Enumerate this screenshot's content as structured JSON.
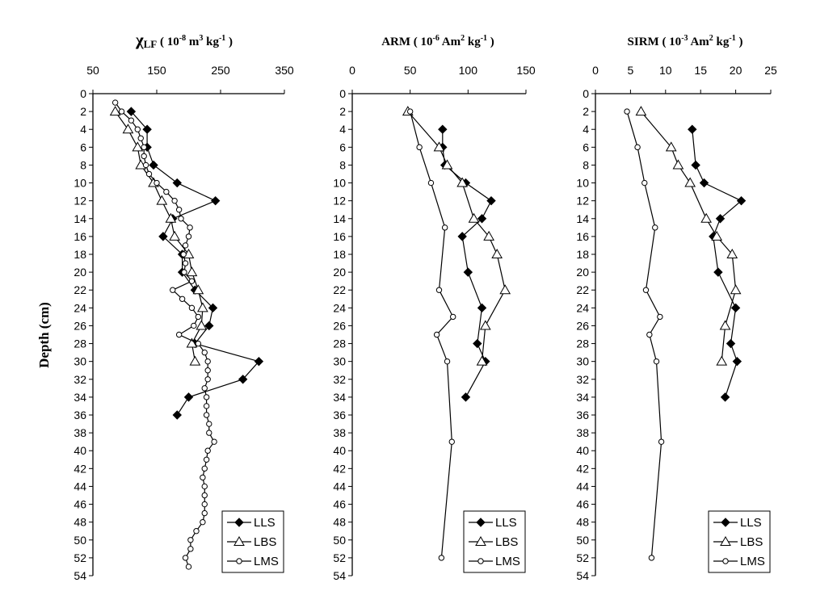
{
  "figure": {
    "ylabel": "Depth (cm)"
  },
  "chart_data": [
    {
      "type": "line",
      "title": {
        "symbol": "χ",
        "sub": "LF",
        "unit_open": " ( 10",
        "exp1": "-8",
        "m": " m",
        "exp2": "3",
        "kg": " kg",
        "exp3": "-1",
        "close": " )"
      },
      "xlim": [
        50,
        350
      ],
      "xticks": [
        50,
        150,
        250,
        350
      ],
      "xtick_labels": [
        "50",
        "150",
        "250",
        "350"
      ],
      "ylim": [
        0,
        54
      ],
      "yticks": [
        0,
        2,
        4,
        6,
        8,
        10,
        12,
        14,
        16,
        18,
        20,
        22,
        24,
        26,
        28,
        30,
        32,
        34,
        36,
        38,
        40,
        42,
        44,
        46,
        48,
        50,
        52,
        54
      ],
      "ytick_labels": [
        "0",
        "2",
        "4",
        "6",
        "8",
        "10",
        "12",
        "14",
        "16",
        "18",
        "20",
        "22",
        "24",
        "26",
        "28",
        "30",
        "32",
        "34",
        "36",
        "38",
        "40",
        "42",
        "44",
        "46",
        "48",
        "50",
        "52",
        "54"
      ],
      "y_inverted": true,
      "legend_position": "bottom-right",
      "series": [
        {
          "name": "LLS",
          "marker": "diamond",
          "points": [
            [
              110,
              2
            ],
            [
              135,
              4
            ],
            [
              135,
              6
            ],
            [
              145,
              8
            ],
            [
              182,
              10
            ],
            [
              242,
              12
            ],
            [
              175,
              14
            ],
            [
              160,
              16
            ],
            [
              190,
              18
            ],
            [
              190,
              20
            ],
            [
              210,
              22
            ],
            [
              238,
              24
            ],
            [
              232,
              26
            ],
            [
              210,
              28
            ],
            [
              310,
              30
            ],
            [
              285,
              32
            ],
            [
              200,
              34
            ],
            [
              182,
              36
            ]
          ]
        },
        {
          "name": "LBS",
          "marker": "triangle",
          "points": [
            [
              85,
              2
            ],
            [
              105,
              4
            ],
            [
              120,
              6
            ],
            [
              125,
              8
            ],
            [
              145,
              10
            ],
            [
              158,
              12
            ],
            [
              172,
              14
            ],
            [
              178,
              16
            ],
            [
              200,
              18
            ],
            [
              205,
              20
            ],
            [
              215,
              22
            ],
            [
              222,
              24
            ],
            [
              220,
              26
            ],
            [
              205,
              28
            ],
            [
              210,
              30
            ]
          ]
        },
        {
          "name": "LMS",
          "marker": "circle",
          "points": [
            [
              85,
              1
            ],
            [
              95,
              2
            ],
            [
              110,
              3
            ],
            [
              120,
              4
            ],
            [
              125,
              5
            ],
            [
              130,
              6
            ],
            [
              130,
              7
            ],
            [
              133,
              8
            ],
            [
              138,
              9
            ],
            [
              150,
              10
            ],
            [
              165,
              11
            ],
            [
              178,
              12
            ],
            [
              185,
              13
            ],
            [
              188,
              14
            ],
            [
              202,
              15
            ],
            [
              200,
              16
            ],
            [
              195,
              17
            ],
            [
              192,
              18
            ],
            [
              195,
              19
            ],
            [
              193,
              20
            ],
            [
              205,
              21
            ],
            [
              175,
              22
            ],
            [
              190,
              23
            ],
            [
              205,
              24
            ],
            [
              215,
              25
            ],
            [
              208,
              26
            ],
            [
              185,
              27
            ],
            [
              215,
              28
            ],
            [
              225,
              29
            ],
            [
              230,
              30
            ],
            [
              230,
              31
            ],
            [
              230,
              32
            ],
            [
              225,
              33
            ],
            [
              228,
              34
            ],
            [
              228,
              35
            ],
            [
              228,
              36
            ],
            [
              232,
              37
            ],
            [
              232,
              38
            ],
            [
              240,
              39
            ],
            [
              230,
              40
            ],
            [
              228,
              41
            ],
            [
              225,
              42
            ],
            [
              222,
              43
            ],
            [
              225,
              44
            ],
            [
              225,
              45
            ],
            [
              225,
              46
            ],
            [
              225,
              47
            ],
            [
              222,
              48
            ],
            [
              212,
              49
            ],
            [
              203,
              50
            ],
            [
              203,
              51
            ],
            [
              195,
              52
            ],
            [
              200,
              53
            ]
          ]
        }
      ]
    },
    {
      "type": "line",
      "title": {
        "main": "ARM",
        "unit_open": " ( 10",
        "exp1": "-6",
        "unit_mid": " Am",
        "exp2": "2",
        "kg": " kg",
        "exp3": "-1",
        "close": " )"
      },
      "xlim": [
        0,
        150
      ],
      "xticks": [
        0,
        50,
        100,
        150
      ],
      "xtick_labels": [
        "0",
        "50",
        "100",
        "150"
      ],
      "ylim": [
        0,
        54
      ],
      "yticks": [
        0,
        2,
        4,
        6,
        8,
        10,
        12,
        14,
        16,
        18,
        20,
        22,
        24,
        26,
        28,
        30,
        32,
        34,
        36,
        38,
        40,
        42,
        44,
        46,
        48,
        50,
        52,
        54
      ],
      "ytick_labels": [
        "0",
        "2",
        "4",
        "6",
        "8",
        "10",
        "12",
        "14",
        "16",
        "18",
        "20",
        "22",
        "24",
        "26",
        "28",
        "30",
        "32",
        "34",
        "36",
        "38",
        "40",
        "42",
        "44",
        "46",
        "48",
        "50",
        "52",
        "54"
      ],
      "y_inverted": true,
      "legend_position": "bottom-right",
      "series": [
        {
          "name": "LLS",
          "marker": "diamond",
          "points": [
            [
              78,
              4
            ],
            [
              78,
              6
            ],
            [
              80,
              8
            ],
            [
              98,
              10
            ],
            [
              120,
              12
            ],
            [
              112,
              14
            ],
            [
              95,
              16
            ],
            [
              100,
              20
            ],
            [
              112,
              24
            ],
            [
              108,
              28
            ],
            [
              115,
              30
            ],
            [
              98,
              34
            ]
          ]
        },
        {
          "name": "LBS",
          "marker": "triangle",
          "points": [
            [
              48,
              2
            ],
            [
              75,
              6
            ],
            [
              82,
              8
            ],
            [
              95,
              10
            ],
            [
              105,
              14
            ],
            [
              118,
              16
            ],
            [
              125,
              18
            ],
            [
              132,
              22
            ],
            [
              115,
              26
            ],
            [
              112,
              30
            ]
          ]
        },
        {
          "name": "LMS",
          "marker": "circle",
          "points": [
            [
              50,
              2
            ],
            [
              58,
              6
            ],
            [
              68,
              10
            ],
            [
              80,
              15
            ],
            [
              75,
              22
            ],
            [
              87,
              25
            ],
            [
              73,
              27
            ],
            [
              82,
              30
            ],
            [
              86,
              39
            ],
            [
              77,
              52
            ]
          ]
        }
      ]
    },
    {
      "type": "line",
      "title": {
        "main": "SIRM",
        "unit_open": " ( 10",
        "exp1": "-3",
        "unit_mid": " Am",
        "exp2": "2",
        "kg": " kg",
        "exp3": "-1",
        "close": " )"
      },
      "xlim": [
        0,
        25
      ],
      "xticks": [
        0,
        5,
        10,
        15,
        20,
        25
      ],
      "xtick_labels": [
        "0",
        "5",
        "10",
        "15",
        "20",
        "25"
      ],
      "ylim": [
        0,
        54
      ],
      "yticks": [
        0,
        2,
        4,
        6,
        8,
        10,
        12,
        14,
        16,
        18,
        20,
        22,
        24,
        26,
        28,
        30,
        32,
        34,
        36,
        38,
        40,
        42,
        44,
        46,
        48,
        50,
        52,
        54
      ],
      "ytick_labels": [
        "0",
        "2",
        "4",
        "6",
        "8",
        "10",
        "12",
        "14",
        "16",
        "18",
        "20",
        "22",
        "24",
        "26",
        "28",
        "30",
        "32",
        "34",
        "36",
        "38",
        "40",
        "42",
        "44",
        "46",
        "48",
        "50",
        "52",
        "54"
      ],
      "y_inverted": true,
      "legend_position": "bottom-right",
      "series": [
        {
          "name": "LLS",
          "marker": "diamond",
          "points": [
            [
              13.8,
              4
            ],
            [
              14.3,
              8
            ],
            [
              15.5,
              10
            ],
            [
              20.8,
              12
            ],
            [
              17.8,
              14
            ],
            [
              16.8,
              16
            ],
            [
              17.5,
              20
            ],
            [
              20,
              24
            ],
            [
              19.3,
              28
            ],
            [
              20.2,
              30
            ],
            [
              18.5,
              34
            ]
          ]
        },
        {
          "name": "LBS",
          "marker": "triangle",
          "points": [
            [
              6.5,
              2
            ],
            [
              10.8,
              6
            ],
            [
              11.8,
              8
            ],
            [
              13.5,
              10
            ],
            [
              15.8,
              14
            ],
            [
              17.3,
              16
            ],
            [
              19.5,
              18
            ],
            [
              20,
              22
            ],
            [
              18.5,
              26
            ],
            [
              18,
              30
            ]
          ]
        },
        {
          "name": "LMS",
          "marker": "circle",
          "points": [
            [
              4.5,
              2
            ],
            [
              6,
              6
            ],
            [
              7,
              10
            ],
            [
              8.5,
              15
            ],
            [
              7.2,
              22
            ],
            [
              9.2,
              25
            ],
            [
              7.7,
              27
            ],
            [
              8.7,
              30
            ],
            [
              9.4,
              39
            ],
            [
              8,
              52
            ]
          ]
        }
      ]
    }
  ]
}
